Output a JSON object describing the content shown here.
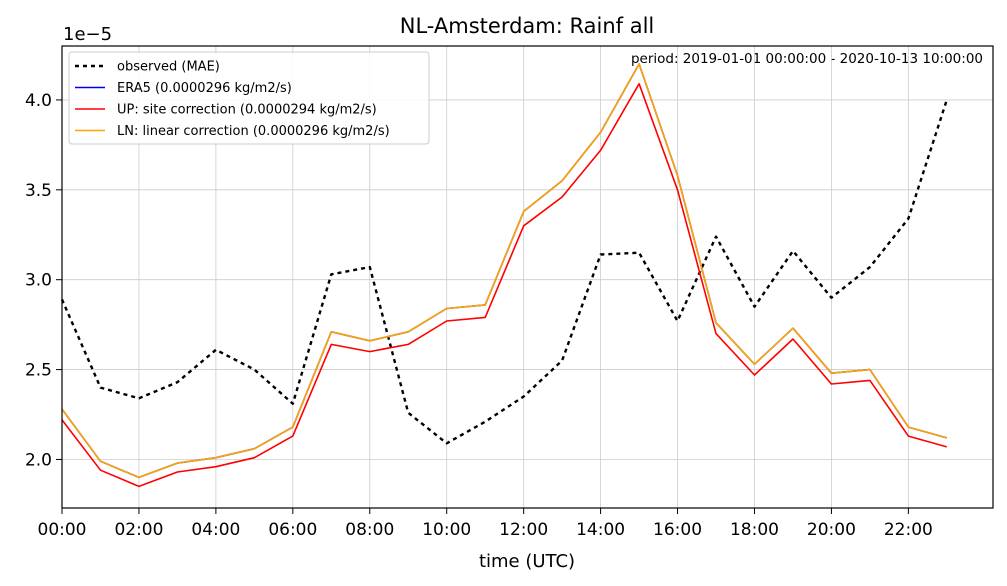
{
  "chart_data": {
    "type": "line",
    "title": "NL-Amsterdam: Rainf all",
    "xlabel": "time (UTC)",
    "ylabel": "",
    "offset_label": "1e−5",
    "annotation": "period: 2019-01-01 00:00:00 - 2020-10-13 10:00:00",
    "x": [
      0,
      1,
      2,
      3,
      4,
      5,
      6,
      7,
      8,
      9,
      10,
      11,
      12,
      13,
      14,
      15,
      16,
      17,
      18,
      19,
      20,
      21,
      22,
      23
    ],
    "xlim": [
      0,
      24.2
    ],
    "ylim": [
      1.73,
      4.3
    ],
    "x_ticks": [
      0,
      2,
      4,
      6,
      8,
      10,
      12,
      14,
      16,
      18,
      20,
      22
    ],
    "x_tick_labels": [
      "00:00",
      "02:00",
      "04:00",
      "06:00",
      "08:00",
      "10:00",
      "12:00",
      "14:00",
      "16:00",
      "18:00",
      "20:00",
      "22:00"
    ],
    "y_ticks": [
      2.0,
      2.5,
      3.0,
      3.5,
      4.0
    ],
    "y_tick_labels": [
      "2.0",
      "2.5",
      "3.0",
      "3.5",
      "4.0"
    ],
    "grid": true,
    "legend_position": "top-left",
    "series": [
      {
        "name": "observed (MAE)",
        "color": "#000000",
        "dash": "dotted",
        "values": [
          2.89,
          2.4,
          2.34,
          2.43,
          2.61,
          2.5,
          2.31,
          3.03,
          3.07,
          2.26,
          2.09,
          2.21,
          2.35,
          2.55,
          3.14,
          3.15,
          2.77,
          3.24,
          2.85,
          3.16,
          2.9,
          3.07,
          3.34,
          4.0
        ]
      },
      {
        "name": "ERA5 (0.0000296 kg/m2/s)",
        "color": "#0000ee",
        "dash": "solid",
        "values": [
          2.28,
          1.99,
          1.9,
          1.98,
          2.01,
          2.06,
          2.18,
          2.71,
          2.66,
          2.71,
          2.84,
          2.86,
          3.38,
          3.55,
          3.82,
          4.2,
          3.58,
          2.76,
          2.53,
          2.73,
          2.48,
          2.5,
          2.18,
          2.12
        ]
      },
      {
        "name": "UP: site correction (0.0000294 kg/m2/s)",
        "color": "#ff0000",
        "dash": "solid",
        "values": [
          2.22,
          1.94,
          1.85,
          1.93,
          1.96,
          2.01,
          2.13,
          2.64,
          2.6,
          2.64,
          2.77,
          2.79,
          3.3,
          3.46,
          3.72,
          4.09,
          3.5,
          2.7,
          2.47,
          2.67,
          2.42,
          2.44,
          2.13,
          2.07
        ]
      },
      {
        "name": "LN: linear correction (0.0000296 kg/m2/s)",
        "color": "#ffa500",
        "dash": "solid",
        "values": [
          2.28,
          1.99,
          1.9,
          1.98,
          2.01,
          2.06,
          2.18,
          2.71,
          2.66,
          2.71,
          2.84,
          2.86,
          3.38,
          3.55,
          3.82,
          4.2,
          3.58,
          2.76,
          2.53,
          2.73,
          2.48,
          2.5,
          2.18,
          2.12
        ]
      }
    ]
  }
}
